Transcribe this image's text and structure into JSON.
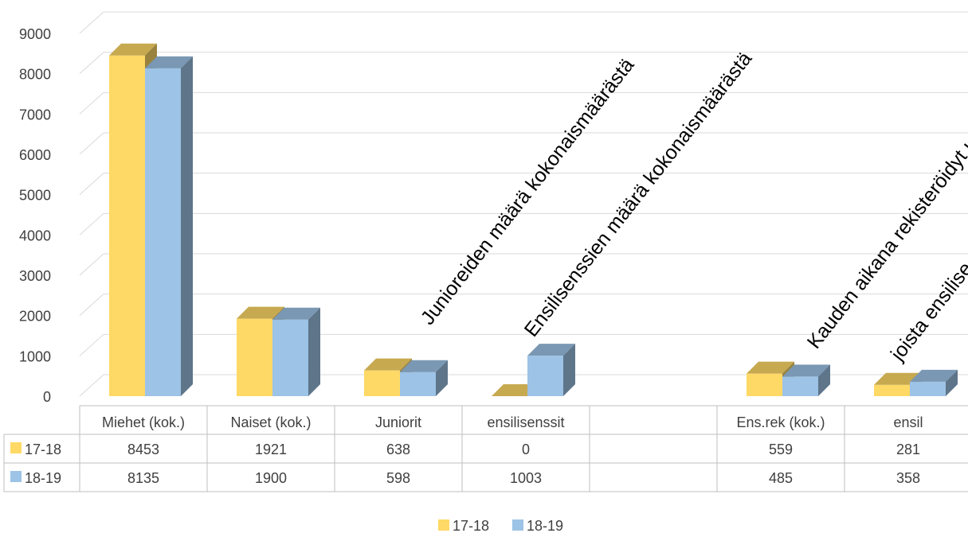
{
  "chart_data": {
    "type": "bar",
    "categories": [
      "Miehet (kok.)",
      "Naiset (kok.)",
      "Juniorit",
      "ensilisenssit",
      "",
      "Ens.rek (kok.)",
      "ensil"
    ],
    "series": [
      {
        "name": "17-18",
        "values": [
          8453,
          1921,
          638,
          0,
          null,
          559,
          281
        ],
        "color": "#FFD966"
      },
      {
        "name": "18-19",
        "values": [
          8135,
          1900,
          598,
          1003,
          null,
          485,
          358
        ],
        "color": "#9DC3E6"
      }
    ],
    "ylim": [
      0,
      9000
    ],
    "y_ticks": [
      "0",
      "1000",
      "2000",
      "3000",
      "4000",
      "5000",
      "6000",
      "7000",
      "8000",
      "9000"
    ],
    "table_values": [
      [
        "8453",
        "1921",
        "638",
        "0",
        "",
        "559",
        "281"
      ],
      [
        "8135",
        "1900",
        "598",
        "1003",
        "",
        "485",
        "358"
      ]
    ],
    "annotations": [
      "Junioreiden määrä kokonaismäärästä",
      "Ensilisenssien määrä kokonaismäärästä",
      "Kauden aikana rekisteröidyt uu",
      "joista ensilise"
    ],
    "legend": [
      "17-18",
      "18-19"
    ],
    "legend_position": "bottom",
    "grid": true,
    "data_table": true
  }
}
